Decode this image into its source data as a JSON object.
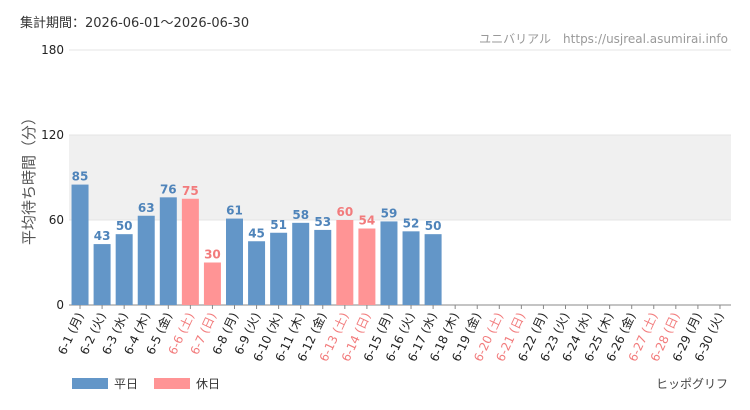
{
  "header": {
    "period": "集計期間：2026-06-01〜2026-06-30",
    "site": "ユニバリアル　https://usjreal.asumirai.info"
  },
  "footer": {
    "credit": "ヒッポグリフ"
  },
  "colors": {
    "weekday": "#6396c8",
    "holiday": "#ff9495",
    "weekday_text": "#4f84ba",
    "holiday_text": "#f27b7c",
    "band": "#f0f0f0",
    "grid": "#e4e4e4"
  },
  "chart_data": {
    "type": "bar",
    "ylabel": "平均待ち時間（分）",
    "ylim": [
      0,
      180
    ],
    "yticks": [
      0,
      60,
      120,
      180
    ],
    "band": [
      60,
      120
    ],
    "legend": {
      "placement": "bottom-left",
      "items": [
        {
          "name": "平日",
          "kind": "weekday"
        },
        {
          "name": "休日",
          "kind": "holiday"
        }
      ]
    },
    "categories": [
      "6-1 (月)",
      "6-2 (火)",
      "6-3 (水)",
      "6-4 (木)",
      "6-5 (金)",
      "6-6 (土)",
      "6-7 (日)",
      "6-8 (月)",
      "6-9 (火)",
      "6-10 (水)",
      "6-11 (木)",
      "6-12 (金)",
      "6-13 (土)",
      "6-14 (日)",
      "6-15 (月)",
      "6-16 (火)",
      "6-17 (水)",
      "6-18 (木)",
      "6-19 (金)",
      "6-20 (土)",
      "6-21 (日)",
      "6-22 (月)",
      "6-23 (火)",
      "6-24 (水)",
      "6-25 (木)",
      "6-26 (金)",
      "6-27 (土)",
      "6-28 (日)",
      "6-29 (月)",
      "6-30 (火)"
    ],
    "values": [
      85,
      43,
      50,
      63,
      76,
      75,
      30,
      61,
      45,
      51,
      58,
      53,
      60,
      54,
      59,
      52,
      50,
      null,
      null,
      null,
      null,
      null,
      null,
      null,
      null,
      null,
      null,
      null,
      null,
      null
    ],
    "holiday": [
      false,
      false,
      false,
      false,
      false,
      true,
      true,
      false,
      false,
      false,
      false,
      false,
      true,
      true,
      false,
      false,
      false,
      false,
      false,
      true,
      true,
      false,
      false,
      false,
      false,
      false,
      true,
      true,
      false,
      false
    ]
  }
}
